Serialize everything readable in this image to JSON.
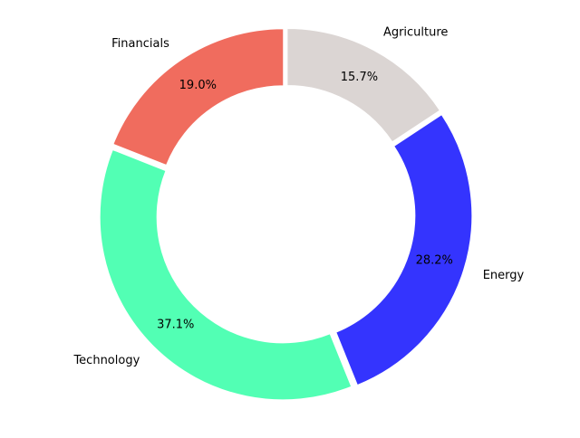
{
  "chart_data": {
    "type": "pie",
    "donut": true,
    "categories": [
      "Financials",
      "Technology",
      "Energy",
      "Agriculture"
    ],
    "values": [
      19.0,
      37.1,
      28.2,
      15.7
    ],
    "labels": [
      "19.0%",
      "37.1%",
      "28.2%",
      "15.7%"
    ],
    "colors": [
      "#f06c5e",
      "#52ffb4",
      "#3434fe",
      "#dbd5d3"
    ],
    "start_angle_deg": 90,
    "direction": "counterclockwise",
    "exploded": true,
    "legend": "none",
    "title": ""
  }
}
